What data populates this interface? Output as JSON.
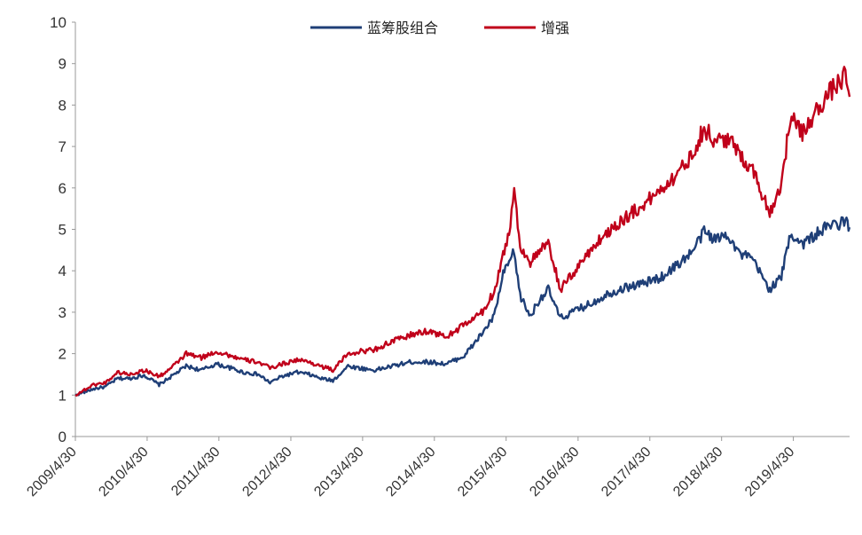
{
  "chart_data": {
    "type": "line",
    "ylim": [
      0,
      10
    ],
    "yticks": [
      "0",
      "1",
      "2",
      "3",
      "4",
      "5",
      "6",
      "7",
      "8",
      "9",
      "10"
    ],
    "xticks": [
      "2009/4/30",
      "2010/4/30",
      "2011/4/30",
      "2012/4/30",
      "2013/4/30",
      "2014/4/30",
      "2015/4/30",
      "2016/4/30",
      "2017/4/30",
      "2018/4/30",
      "2019/4/30"
    ],
    "legend_position": "top-center",
    "grid": false,
    "series": [
      {
        "name": "蓝筹股组合",
        "color": "#1f3f77",
        "points": [
          [
            "2009/4/30",
            1.0
          ],
          [
            "2009/7/31",
            1.15
          ],
          [
            "2009/9/30",
            1.2
          ],
          [
            "2009/11/30",
            1.4
          ],
          [
            "2010/1/31",
            1.4
          ],
          [
            "2010/4/15",
            1.48
          ],
          [
            "2010/6/30",
            1.25
          ],
          [
            "2010/8/31",
            1.45
          ],
          [
            "2010/11/15",
            1.7
          ],
          [
            "2011/1/31",
            1.6
          ],
          [
            "2011/4/15",
            1.75
          ],
          [
            "2011/6/30",
            1.65
          ],
          [
            "2011/8/31",
            1.55
          ],
          [
            "2011/11/15",
            1.5
          ],
          [
            "2012/1/15",
            1.3
          ],
          [
            "2012/3/15",
            1.45
          ],
          [
            "2012/5/31",
            1.55
          ],
          [
            "2012/7/31",
            1.5
          ],
          [
            "2012/9/30",
            1.4
          ],
          [
            "2012/11/30",
            1.35
          ],
          [
            "2013/2/15",
            1.7
          ],
          [
            "2013/4/15",
            1.65
          ],
          [
            "2013/6/30",
            1.6
          ],
          [
            "2013/9/30",
            1.7
          ],
          [
            "2013/12/31",
            1.8
          ],
          [
            "2014/3/31",
            1.8
          ],
          [
            "2014/6/30",
            1.75
          ],
          [
            "2014/9/30",
            1.95
          ],
          [
            "2014/12/31",
            2.5
          ],
          [
            "2015/2/28",
            2.9
          ],
          [
            "2015/4/15",
            3.9
          ],
          [
            "2015/5/15",
            4.2
          ],
          [
            "2015/6/10",
            4.45
          ],
          [
            "2015/7/10",
            3.4
          ],
          [
            "2015/8/31",
            2.9
          ],
          [
            "2015/10/15",
            3.3
          ],
          [
            "2015/11/30",
            3.55
          ],
          [
            "2016/1/31",
            2.85
          ],
          [
            "2016/3/31",
            3.0
          ],
          [
            "2016/6/30",
            3.2
          ],
          [
            "2016/9/30",
            3.45
          ],
          [
            "2016/12/31",
            3.6
          ],
          [
            "2017/3/31",
            3.7
          ],
          [
            "2017/6/30",
            3.85
          ],
          [
            "2017/9/30",
            4.2
          ],
          [
            "2017/11/30",
            4.45
          ],
          [
            "2018/1/31",
            4.95
          ],
          [
            "2018/3/31",
            4.75
          ],
          [
            "2018/5/31",
            4.9
          ],
          [
            "2018/7/31",
            4.4
          ],
          [
            "2018/9/30",
            4.3
          ],
          [
            "2018/12/31",
            3.55
          ],
          [
            "2019/2/28",
            3.85
          ],
          [
            "2019/4/15",
            4.9
          ],
          [
            "2019/6/15",
            4.65
          ],
          [
            "2019/8/31",
            4.9
          ],
          [
            "2019/10/31",
            5.1
          ],
          [
            "2019/12/31",
            5.15
          ],
          [
            "2020/1/20",
            5.2
          ],
          [
            "2020/2/10",
            5.05
          ]
        ]
      },
      {
        "name": "增强",
        "color": "#c0001a",
        "points": [
          [
            "2009/4/30",
            1.0
          ],
          [
            "2009/7/31",
            1.25
          ],
          [
            "2009/9/30",
            1.3
          ],
          [
            "2009/11/30",
            1.55
          ],
          [
            "2010/1/31",
            1.5
          ],
          [
            "2010/4/15",
            1.6
          ],
          [
            "2010/6/30",
            1.45
          ],
          [
            "2010/8/31",
            1.65
          ],
          [
            "2010/11/15",
            2.0
          ],
          [
            "2011/1/31",
            1.9
          ],
          [
            "2011/4/15",
            2.05
          ],
          [
            "2011/6/30",
            1.95
          ],
          [
            "2011/8/31",
            1.85
          ],
          [
            "2011/11/15",
            1.8
          ],
          [
            "2012/1/15",
            1.65
          ],
          [
            "2012/3/15",
            1.75
          ],
          [
            "2012/5/31",
            1.85
          ],
          [
            "2012/7/31",
            1.8
          ],
          [
            "2012/9/30",
            1.7
          ],
          [
            "2012/11/30",
            1.6
          ],
          [
            "2013/2/15",
            2.0
          ],
          [
            "2013/4/15",
            2.05
          ],
          [
            "2013/6/30",
            2.1
          ],
          [
            "2013/9/30",
            2.3
          ],
          [
            "2013/12/31",
            2.45
          ],
          [
            "2014/3/31",
            2.55
          ],
          [
            "2014/6/30",
            2.4
          ],
          [
            "2014/9/30",
            2.7
          ],
          [
            "2014/12/31",
            3.0
          ],
          [
            "2015/2/28",
            3.5
          ],
          [
            "2015/4/15",
            4.4
          ],
          [
            "2015/5/15",
            4.9
          ],
          [
            "2015/6/10",
            5.95
          ],
          [
            "2015/7/10",
            4.6
          ],
          [
            "2015/8/31",
            4.2
          ],
          [
            "2015/10/15",
            4.45
          ],
          [
            "2015/11/30",
            4.65
          ],
          [
            "2016/1/31",
            3.55
          ],
          [
            "2016/3/31",
            3.9
          ],
          [
            "2016/6/30",
            4.5
          ],
          [
            "2016/9/30",
            4.95
          ],
          [
            "2016/12/31",
            5.3
          ],
          [
            "2017/3/31",
            5.6
          ],
          [
            "2017/6/30",
            6.0
          ],
          [
            "2017/9/30",
            6.4
          ],
          [
            "2017/11/30",
            6.8
          ],
          [
            "2018/1/31",
            7.45
          ],
          [
            "2018/3/31",
            7.1
          ],
          [
            "2018/5/31",
            7.2
          ],
          [
            "2018/7/31",
            6.8
          ],
          [
            "2018/9/30",
            6.5
          ],
          [
            "2018/12/31",
            5.4
          ],
          [
            "2019/2/28",
            6.1
          ],
          [
            "2019/4/15",
            7.7
          ],
          [
            "2019/6/15",
            7.3
          ],
          [
            "2019/8/31",
            7.9
          ],
          [
            "2019/10/31",
            8.3
          ],
          [
            "2019/12/31",
            8.6
          ],
          [
            "2020/1/20",
            8.7
          ],
          [
            "2020/2/10",
            8.2
          ]
        ]
      }
    ]
  }
}
